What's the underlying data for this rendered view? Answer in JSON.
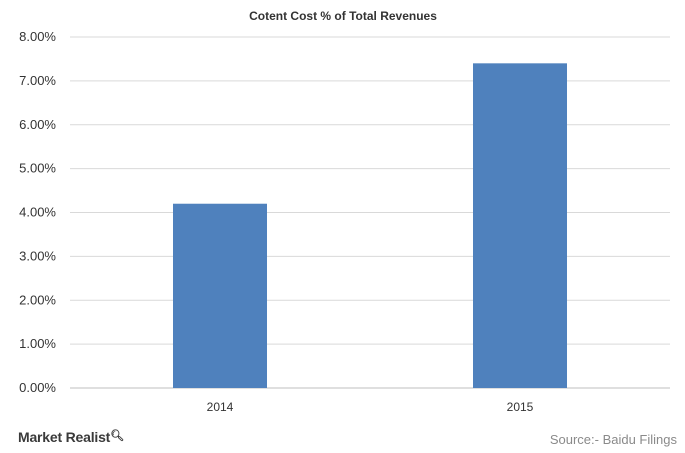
{
  "chart_data": {
    "type": "bar",
    "title": "Cotent Cost % of Total Revenues",
    "categories": [
      "2014",
      "2015"
    ],
    "values": [
      4.2,
      7.4
    ],
    "value_unit": "%",
    "ylim": [
      0,
      8
    ],
    "yticks": [
      "0.00%",
      "1.00%",
      "2.00%",
      "3.00%",
      "4.00%",
      "5.00%",
      "6.00%",
      "7.00%",
      "8.00%"
    ],
    "xlabel": "",
    "ylabel": "",
    "grid": true,
    "legend": "none",
    "bar_color": "#4f81bd"
  },
  "footer": {
    "brand": "Market Realist",
    "brand_icon": "magnifier-icon",
    "source": "Source:- Baidu Filings"
  }
}
